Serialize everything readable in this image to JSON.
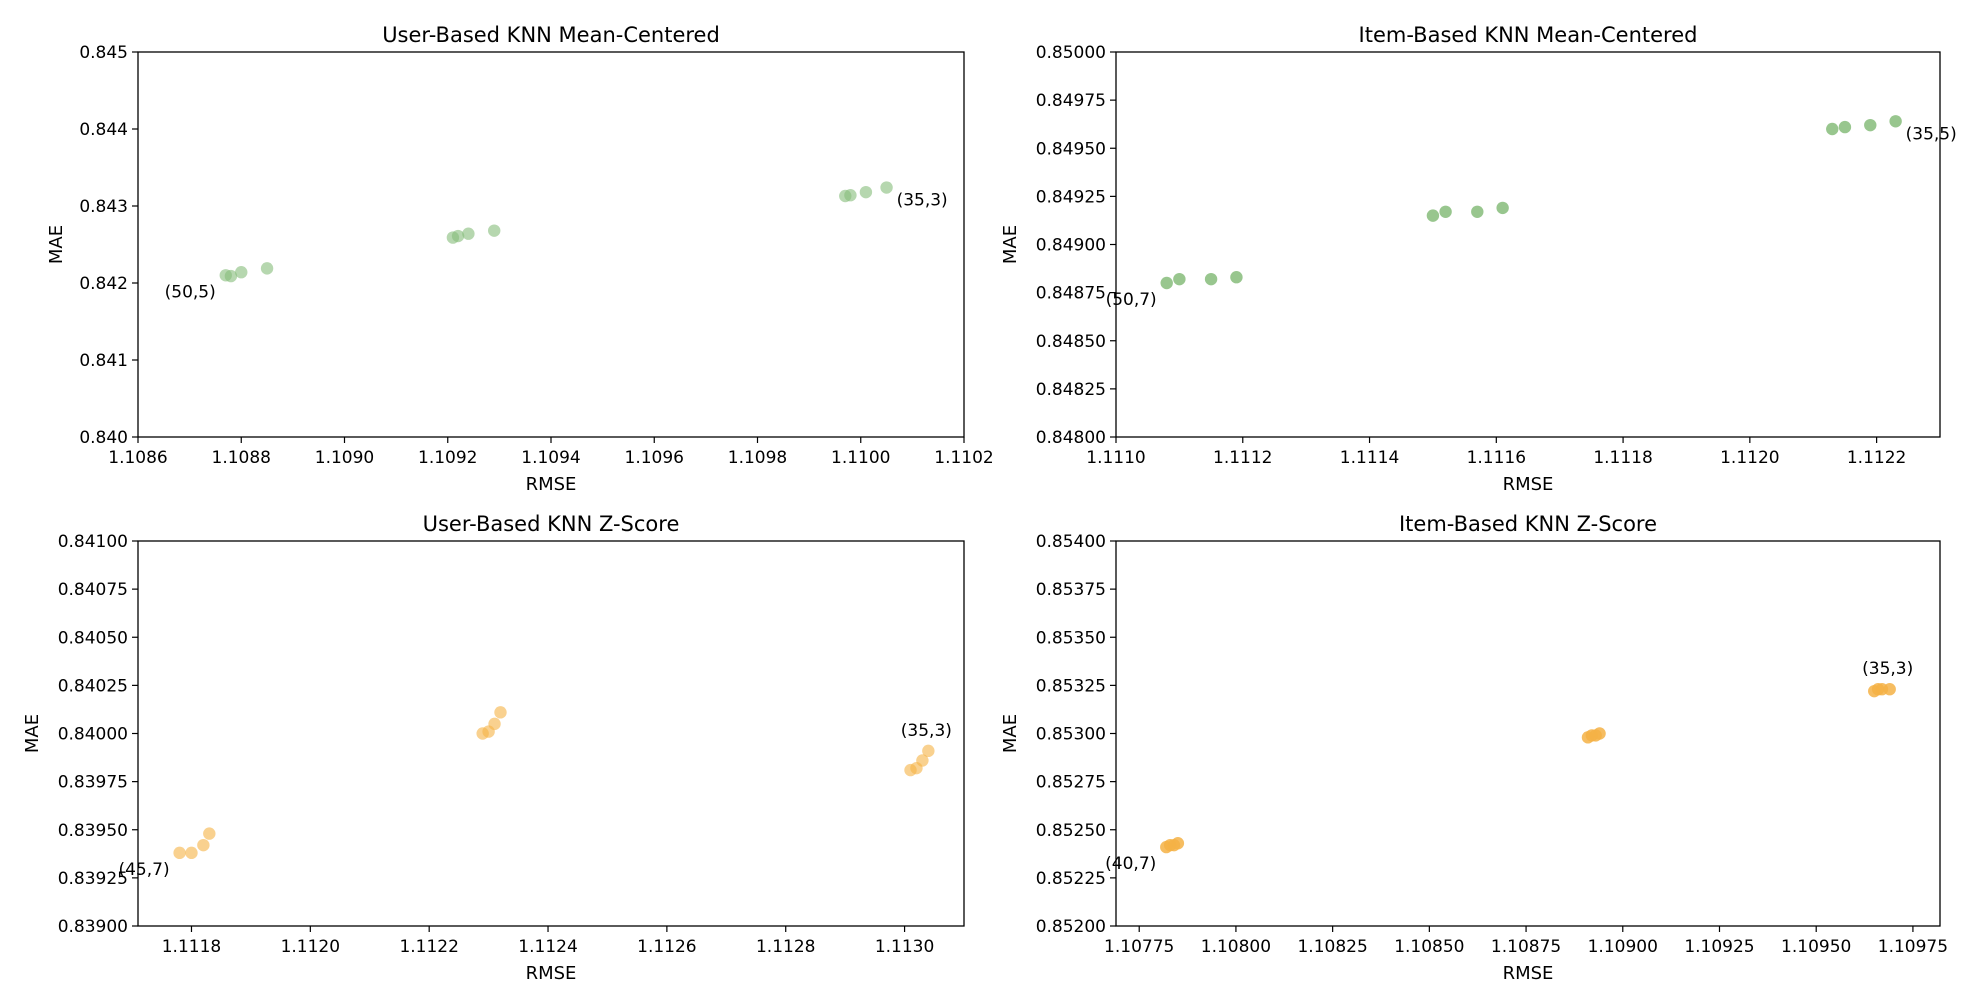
{
  "chart_data": [
    {
      "type": "scatter",
      "title": "User-Based KNN Mean-Centered",
      "xlabel": "RMSE",
      "ylabel": "MAE",
      "xlim": [
        1.1086,
        1.1102
      ],
      "ylim": [
        0.84,
        0.845
      ],
      "xticks": [
        "1.1086",
        "1.1088",
        "1.1090",
        "1.1092",
        "1.1094",
        "1.1096",
        "1.1098",
        "1.1100",
        "1.1102"
      ],
      "yticks": [
        "0.840",
        "0.841",
        "0.842",
        "0.843",
        "0.844",
        "0.845"
      ],
      "color": "#86bc7a",
      "alpha": 0.6,
      "points": [
        {
          "x": 1.10877,
          "y": 0.8421
        },
        {
          "x": 1.10878,
          "y": 0.84209
        },
        {
          "x": 1.1088,
          "y": 0.84214
        },
        {
          "x": 1.10885,
          "y": 0.84219
        },
        {
          "x": 1.10921,
          "y": 0.84259
        },
        {
          "x": 1.10922,
          "y": 0.84261
        },
        {
          "x": 1.10924,
          "y": 0.84264
        },
        {
          "x": 1.10929,
          "y": 0.84268
        },
        {
          "x": 1.10997,
          "y": 0.84313
        },
        {
          "x": 1.10998,
          "y": 0.84314
        },
        {
          "x": 1.11001,
          "y": 0.84318
        },
        {
          "x": 1.11005,
          "y": 0.84324
        }
      ],
      "annotations": [
        {
          "text": "(50,5)",
          "x": 1.10877,
          "y": 0.8421,
          "pos": "below-left"
        },
        {
          "text": "(35,3)",
          "x": 1.11005,
          "y": 0.84324,
          "pos": "below-right"
        }
      ]
    },
    {
      "type": "scatter",
      "title": "Item-Based KNN Mean-Centered",
      "xlabel": "RMSE",
      "ylabel": "MAE",
      "xlim": [
        1.111,
        1.1123
      ],
      "ylim": [
        0.848,
        0.85
      ],
      "xticks": [
        "1.1110",
        "1.1112",
        "1.1114",
        "1.1116",
        "1.1118",
        "1.1120",
        "1.1122"
      ],
      "yticks": [
        "0.84800",
        "0.84825",
        "0.84850",
        "0.84875",
        "0.84900",
        "0.84925",
        "0.84950",
        "0.84975",
        "0.85000"
      ],
      "xtick_values": [
        1.111,
        1.1112,
        1.1114,
        1.1116,
        1.1118,
        1.112,
        1.1122
      ],
      "color": "#86bc7a",
      "alpha": 0.85,
      "points": [
        {
          "x": 1.11108,
          "y": 0.8488
        },
        {
          "x": 1.1111,
          "y": 0.84882
        },
        {
          "x": 1.11115,
          "y": 0.84882
        },
        {
          "x": 1.11119,
          "y": 0.84883
        },
        {
          "x": 1.1115,
          "y": 0.84915
        },
        {
          "x": 1.11152,
          "y": 0.84917
        },
        {
          "x": 1.11157,
          "y": 0.84917
        },
        {
          "x": 1.11161,
          "y": 0.84919
        },
        {
          "x": 1.11213,
          "y": 0.8496
        },
        {
          "x": 1.11215,
          "y": 0.84961
        },
        {
          "x": 1.11219,
          "y": 0.84962
        },
        {
          "x": 1.11223,
          "y": 0.84964
        }
      ],
      "annotations": [
        {
          "text": "(50,7)",
          "x": 1.11108,
          "y": 0.8488,
          "pos": "below-left"
        },
        {
          "text": "(35,5)",
          "x": 1.11223,
          "y": 0.84964,
          "pos": "below-right"
        }
      ]
    },
    {
      "type": "scatter",
      "title": "User-Based KNN Z-Score",
      "xlabel": "RMSE",
      "ylabel": "MAE",
      "xlim": [
        1.11171,
        1.1131
      ],
      "ylim": [
        0.839,
        0.841
      ],
      "xticks": [
        "1.1118",
        "1.1120",
        "1.1122",
        "1.1124",
        "1.1126",
        "1.1128",
        "1.1130"
      ],
      "xtick_values": [
        1.1118,
        1.112,
        1.1122,
        1.1124,
        1.1126,
        1.1128,
        1.113
      ],
      "yticks": [
        "0.83900",
        "0.83925",
        "0.83950",
        "0.83975",
        "0.84000",
        "0.84025",
        "0.84050",
        "0.84075",
        "0.84100"
      ],
      "color": "#f5b245",
      "alpha": 0.6,
      "points": [
        {
          "x": 1.11178,
          "y": 0.83938
        },
        {
          "x": 1.1118,
          "y": 0.83938
        },
        {
          "x": 1.11182,
          "y": 0.83942
        },
        {
          "x": 1.11183,
          "y": 0.83948
        },
        {
          "x": 1.11229,
          "y": 0.84
        },
        {
          "x": 1.1123,
          "y": 0.84001
        },
        {
          "x": 1.11231,
          "y": 0.84005
        },
        {
          "x": 1.11232,
          "y": 0.84011
        },
        {
          "x": 1.11301,
          "y": 0.83981
        },
        {
          "x": 1.11302,
          "y": 0.83982
        },
        {
          "x": 1.11303,
          "y": 0.83986
        },
        {
          "x": 1.11304,
          "y": 0.83991
        }
      ],
      "annotations": [
        {
          "text": "(45,7)",
          "x": 1.11178,
          "y": 0.83938,
          "pos": "below-left"
        },
        {
          "text": "(35,3)",
          "x": 1.11304,
          "y": 0.83991,
          "pos": "above"
        }
      ]
    },
    {
      "type": "scatter",
      "title": "Item-Based KNN Z-Score",
      "xlabel": "RMSE",
      "ylabel": "MAE",
      "xlim": [
        1.10769,
        1.10982
      ],
      "ylim": [
        0.852,
        0.854
      ],
      "xticks": [
        "1.10775",
        "1.10800",
        "1.10825",
        "1.10850",
        "1.10875",
        "1.10900",
        "1.10925",
        "1.10950",
        "1.10975"
      ],
      "xtick_values": [
        1.10775,
        1.108,
        1.10825,
        1.1085,
        1.10875,
        1.109,
        1.10925,
        1.1095,
        1.10975
      ],
      "yticks": [
        "0.85200",
        "0.85225",
        "0.85250",
        "0.85275",
        "0.85300",
        "0.85325",
        "0.85350",
        "0.85375",
        "0.85400"
      ],
      "color": "#f5b245",
      "alpha": 0.85,
      "points": [
        {
          "x": 1.10782,
          "y": 0.85241
        },
        {
          "x": 1.10783,
          "y": 0.85242
        },
        {
          "x": 1.10784,
          "y": 0.85242
        },
        {
          "x": 1.10785,
          "y": 0.85243
        },
        {
          "x": 1.10891,
          "y": 0.85298
        },
        {
          "x": 1.10892,
          "y": 0.85299
        },
        {
          "x": 1.10893,
          "y": 0.85299
        },
        {
          "x": 1.10894,
          "y": 0.853
        },
        {
          "x": 1.10965,
          "y": 0.85322
        },
        {
          "x": 1.10966,
          "y": 0.85323
        },
        {
          "x": 1.10967,
          "y": 0.85323
        },
        {
          "x": 1.10969,
          "y": 0.85323
        }
      ],
      "annotations": [
        {
          "text": "(40,7)",
          "x": 1.10782,
          "y": 0.85241,
          "pos": "below-left"
        },
        {
          "text": "(35,3)",
          "x": 1.10969,
          "y": 0.85323,
          "pos": "above"
        }
      ]
    }
  ]
}
